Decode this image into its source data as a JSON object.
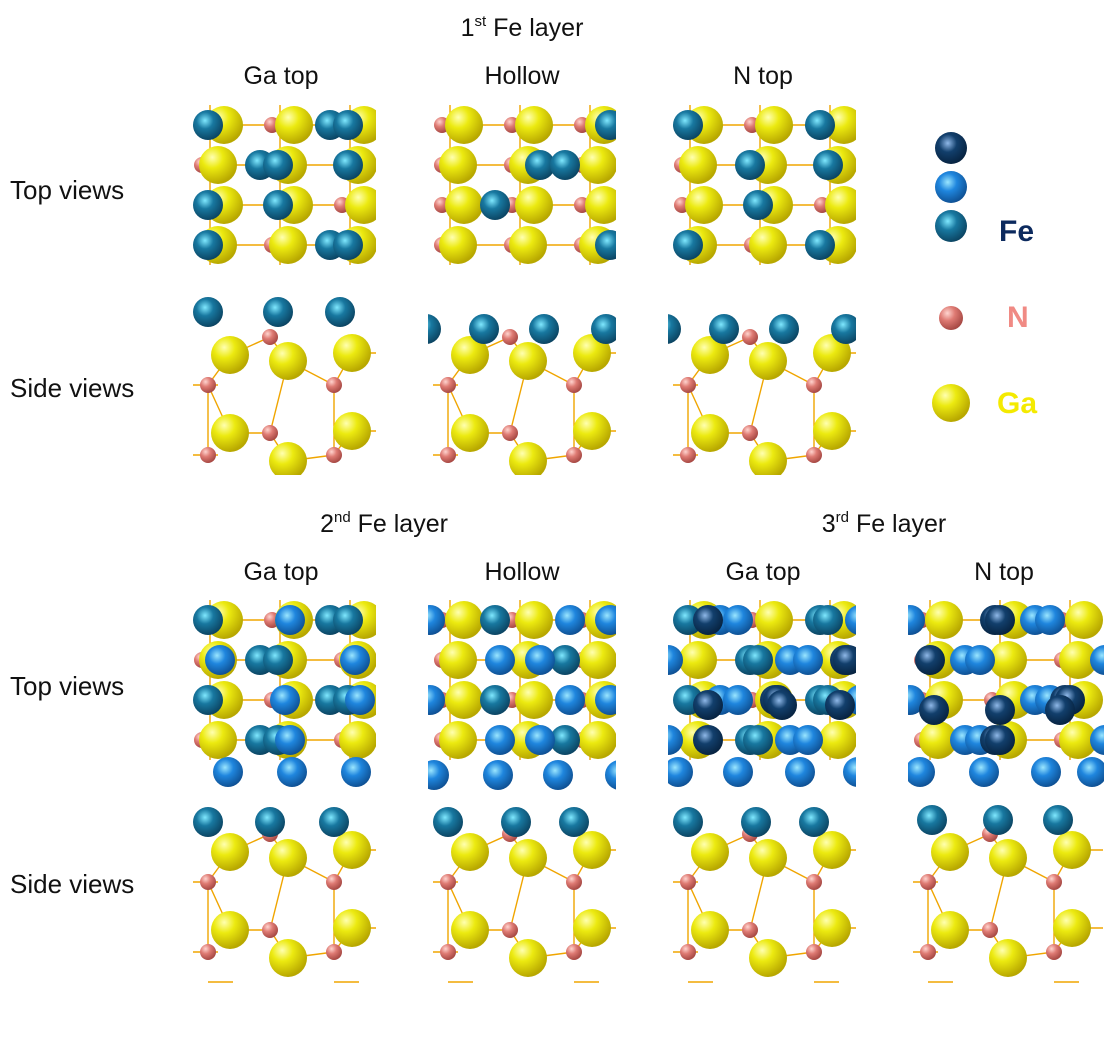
{
  "sections": {
    "first": {
      "sup": "st",
      "pre": "1",
      "post": " Fe layer"
    },
    "second": {
      "sup": "nd",
      "pre": "2",
      "post": " Fe layer"
    },
    "third": {
      "sup": "rd",
      "pre": "3",
      "post": " Fe layer"
    }
  },
  "columns": {
    "c1": "Ga top",
    "c2": "Hollow",
    "c3": "N top",
    "c4": "Ga top",
    "c5": "Hollow",
    "c6": "Ga top",
    "c7": "N top"
  },
  "rows": {
    "r1": "Top views",
    "r2": "Side views",
    "r3": "Top views",
    "r4": "Side views"
  },
  "legend": {
    "fe": {
      "label": "Fe",
      "color": "#0c2a5e"
    },
    "n": {
      "label": "N",
      "color": "#f08a84"
    },
    "ga": {
      "label": "Ga",
      "color": "#f4ea00"
    }
  },
  "colors": {
    "ga": "#e8e000",
    "n": "#d9726c",
    "fe1": "#13698f",
    "fe2": "#1f7fd6",
    "fe3": "#103b66",
    "bond": "#f0a500"
  }
}
